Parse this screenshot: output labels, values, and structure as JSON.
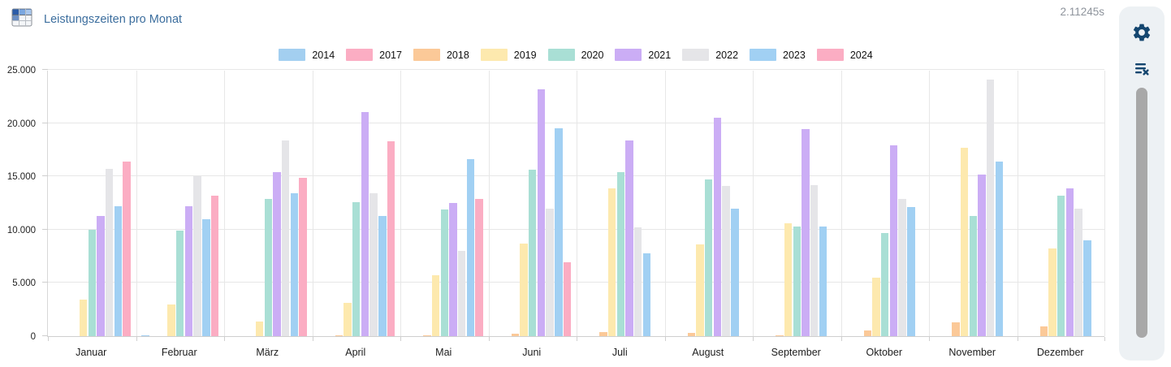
{
  "header": {
    "title": "Leistungszeiten pro Monat",
    "icon": "table-chart-icon",
    "timer": "2.11245s"
  },
  "side_panel": {
    "icons": [
      "gear-icon",
      "clear-list-icon"
    ],
    "icon_color": "#14466f",
    "panel_bg": "#edf1f4"
  },
  "chart_data": {
    "type": "bar",
    "title": "Leistungszeiten pro Monat",
    "xlabel": "",
    "ylabel": "",
    "ylim": [
      0,
      25000
    ],
    "ytick_step": 5000,
    "ytick_labels": [
      "0",
      "5.000",
      "10.000",
      "15.000",
      "20.000",
      "25.000"
    ],
    "grid": true,
    "legend_position": "top",
    "categories": [
      "Januar",
      "Februar",
      "März",
      "April",
      "Mai",
      "Juni",
      "Juli",
      "August",
      "September",
      "Oktober",
      "November",
      "Dezember"
    ],
    "series": [
      {
        "name": "2014",
        "color": "#a3cff0",
        "values": [
          0,
          100,
          0,
          0,
          0,
          0,
          0,
          0,
          0,
          0,
          0,
          0
        ]
      },
      {
        "name": "2017",
        "color": "#fbadc3",
        "values": [
          0,
          0,
          0,
          0,
          0,
          0,
          0,
          0,
          0,
          0,
          0,
          0
        ]
      },
      {
        "name": "2018",
        "color": "#fbc998",
        "values": [
          0,
          0,
          0,
          100,
          100,
          200,
          400,
          300,
          100,
          500,
          1300,
          900
        ]
      },
      {
        "name": "2019",
        "color": "#fde9ae",
        "values": [
          3400,
          3000,
          1400,
          3100,
          5700,
          8700,
          13900,
          8600,
          10600,
          5500,
          17700,
          8200
        ]
      },
      {
        "name": "2020",
        "color": "#a9dfd5",
        "values": [
          10000,
          9900,
          12900,
          12600,
          11900,
          15600,
          15400,
          14700,
          10300,
          9700,
          11300,
          13200
        ]
      },
      {
        "name": "2021",
        "color": "#cbadf5",
        "values": [
          11300,
          12200,
          15400,
          21000,
          12500,
          23200,
          18400,
          20500,
          19400,
          17900,
          15200,
          13900
        ]
      },
      {
        "name": "2022",
        "color": "#e5e5e8",
        "values": [
          15700,
          15000,
          18400,
          13400,
          8000,
          12000,
          10200,
          14100,
          14200,
          12900,
          24100,
          12000
        ]
      },
      {
        "name": "2023",
        "color": "#a1d0f3",
        "values": [
          12200,
          11000,
          13400,
          11300,
          16600,
          19500,
          7800,
          12000,
          10300,
          12100,
          16400,
          9000
        ]
      },
      {
        "name": "2024",
        "color": "#fbadc3",
        "values": [
          16400,
          13200,
          14900,
          18300,
          12900,
          6900,
          0,
          0,
          0,
          0,
          0,
          0
        ]
      }
    ]
  }
}
